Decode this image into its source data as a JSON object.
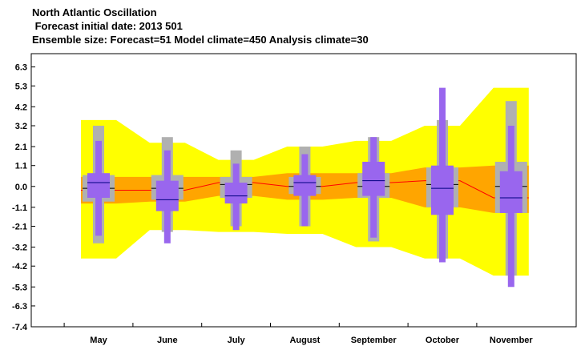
{
  "header": {
    "title": "North Atlantic Oscillation",
    "forecast_date": " Forecast initial date: 2013 501",
    "ensemble": "Ensemble size: Forecast=51 Model climate=450 Analysis climate=30"
  },
  "colors": {
    "yellow_band": "#ffff00",
    "orange_band": "#ffa500",
    "grey_box": "#b0b0b0",
    "purple_box": "#9966ee",
    "median_line": "#ff0000",
    "forecast_median": "#000080"
  },
  "chart_data": {
    "type": "box",
    "categories": [
      "May",
      "June",
      "July",
      "August",
      "September",
      "October",
      "November"
    ],
    "yticks": [
      "6.3",
      "5.3",
      "4.2",
      "3.2",
      "2.1",
      "1.1",
      "0.0",
      "-1.1",
      "-2.1",
      "-3.2",
      "-4.2",
      "-5.3",
      "-6.3",
      "-7.4"
    ],
    "ylim": [
      -7.4,
      7.0
    ],
    "model_climate_extremes": {
      "max": [
        3.5,
        2.3,
        1.4,
        2.1,
        2.4,
        3.2,
        5.2
      ],
      "min": [
        -3.8,
        -2.3,
        -2.4,
        -2.5,
        -3.2,
        -3.8,
        -4.7
      ]
    },
    "model_climate_quartiles": {
      "q75": [
        0.5,
        0.5,
        0.5,
        0.7,
        0.7,
        1.0,
        1.1
      ],
      "q25": [
        -0.9,
        -0.8,
        -0.5,
        -0.7,
        -0.6,
        -1.1,
        -1.4
      ]
    },
    "model_climate_median": [
      -0.2,
      -0.2,
      0.2,
      0.0,
      0.2,
      0.3,
      -0.6
    ],
    "analysis_climate": {
      "max": [
        3.2,
        2.6,
        1.9,
        2.1,
        2.6,
        3.5,
        4.5
      ],
      "q75": [
        0.6,
        0.6,
        0.5,
        0.5,
        0.7,
        1.0,
        1.3
      ],
      "q25": [
        -0.8,
        -0.7,
        -0.6,
        -0.4,
        -0.6,
        -1.1,
        -1.4
      ],
      "min": [
        -3.0,
        -2.4,
        -2.1,
        -2.1,
        -2.9,
        -3.8,
        -4.7
      ]
    },
    "forecast": {
      "max": [
        2.4,
        1.9,
        1.2,
        1.7,
        2.6,
        5.2,
        3.2
      ],
      "q75": [
        0.7,
        0.3,
        0.2,
        0.6,
        1.3,
        1.1,
        0.8
      ],
      "median": [
        0.2,
        -0.7,
        -0.5,
        0.2,
        0.3,
        -0.1,
        -0.6
      ],
      "q25": [
        -0.6,
        -1.3,
        -0.9,
        -0.5,
        -0.5,
        -1.5,
        -1.4
      ],
      "min": [
        -2.6,
        -3.0,
        -2.3,
        -2.1,
        -2.7,
        -4.0,
        -5.3
      ]
    },
    "analysis_median": [
      -0.1,
      -0.1,
      0.1,
      0.0,
      0.0,
      0.1,
      0.0
    ]
  }
}
